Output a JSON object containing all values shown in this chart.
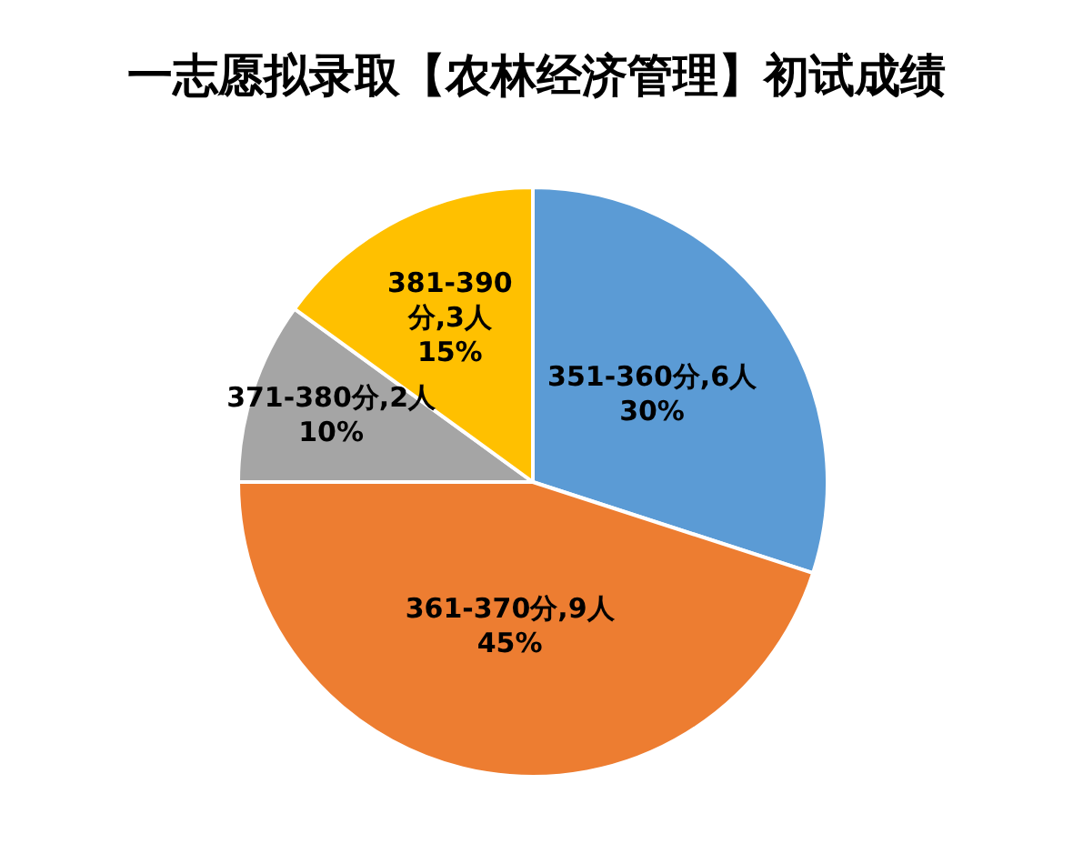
{
  "chart_data": {
    "type": "pie",
    "title": "一志愿拟录取【农林经济管理】初试成绩",
    "categories": [
      "351-360分,6人",
      "361-370分,9人",
      "371-380分,2人",
      "381-390分,3人"
    ],
    "values": [
      30,
      45,
      10,
      15
    ],
    "value_labels": [
      "30%",
      "45%",
      "10%",
      "15%"
    ],
    "colors": [
      "#5b9bd5",
      "#ed7d31",
      "#a5a5a5",
      "#ffc000"
    ]
  }
}
